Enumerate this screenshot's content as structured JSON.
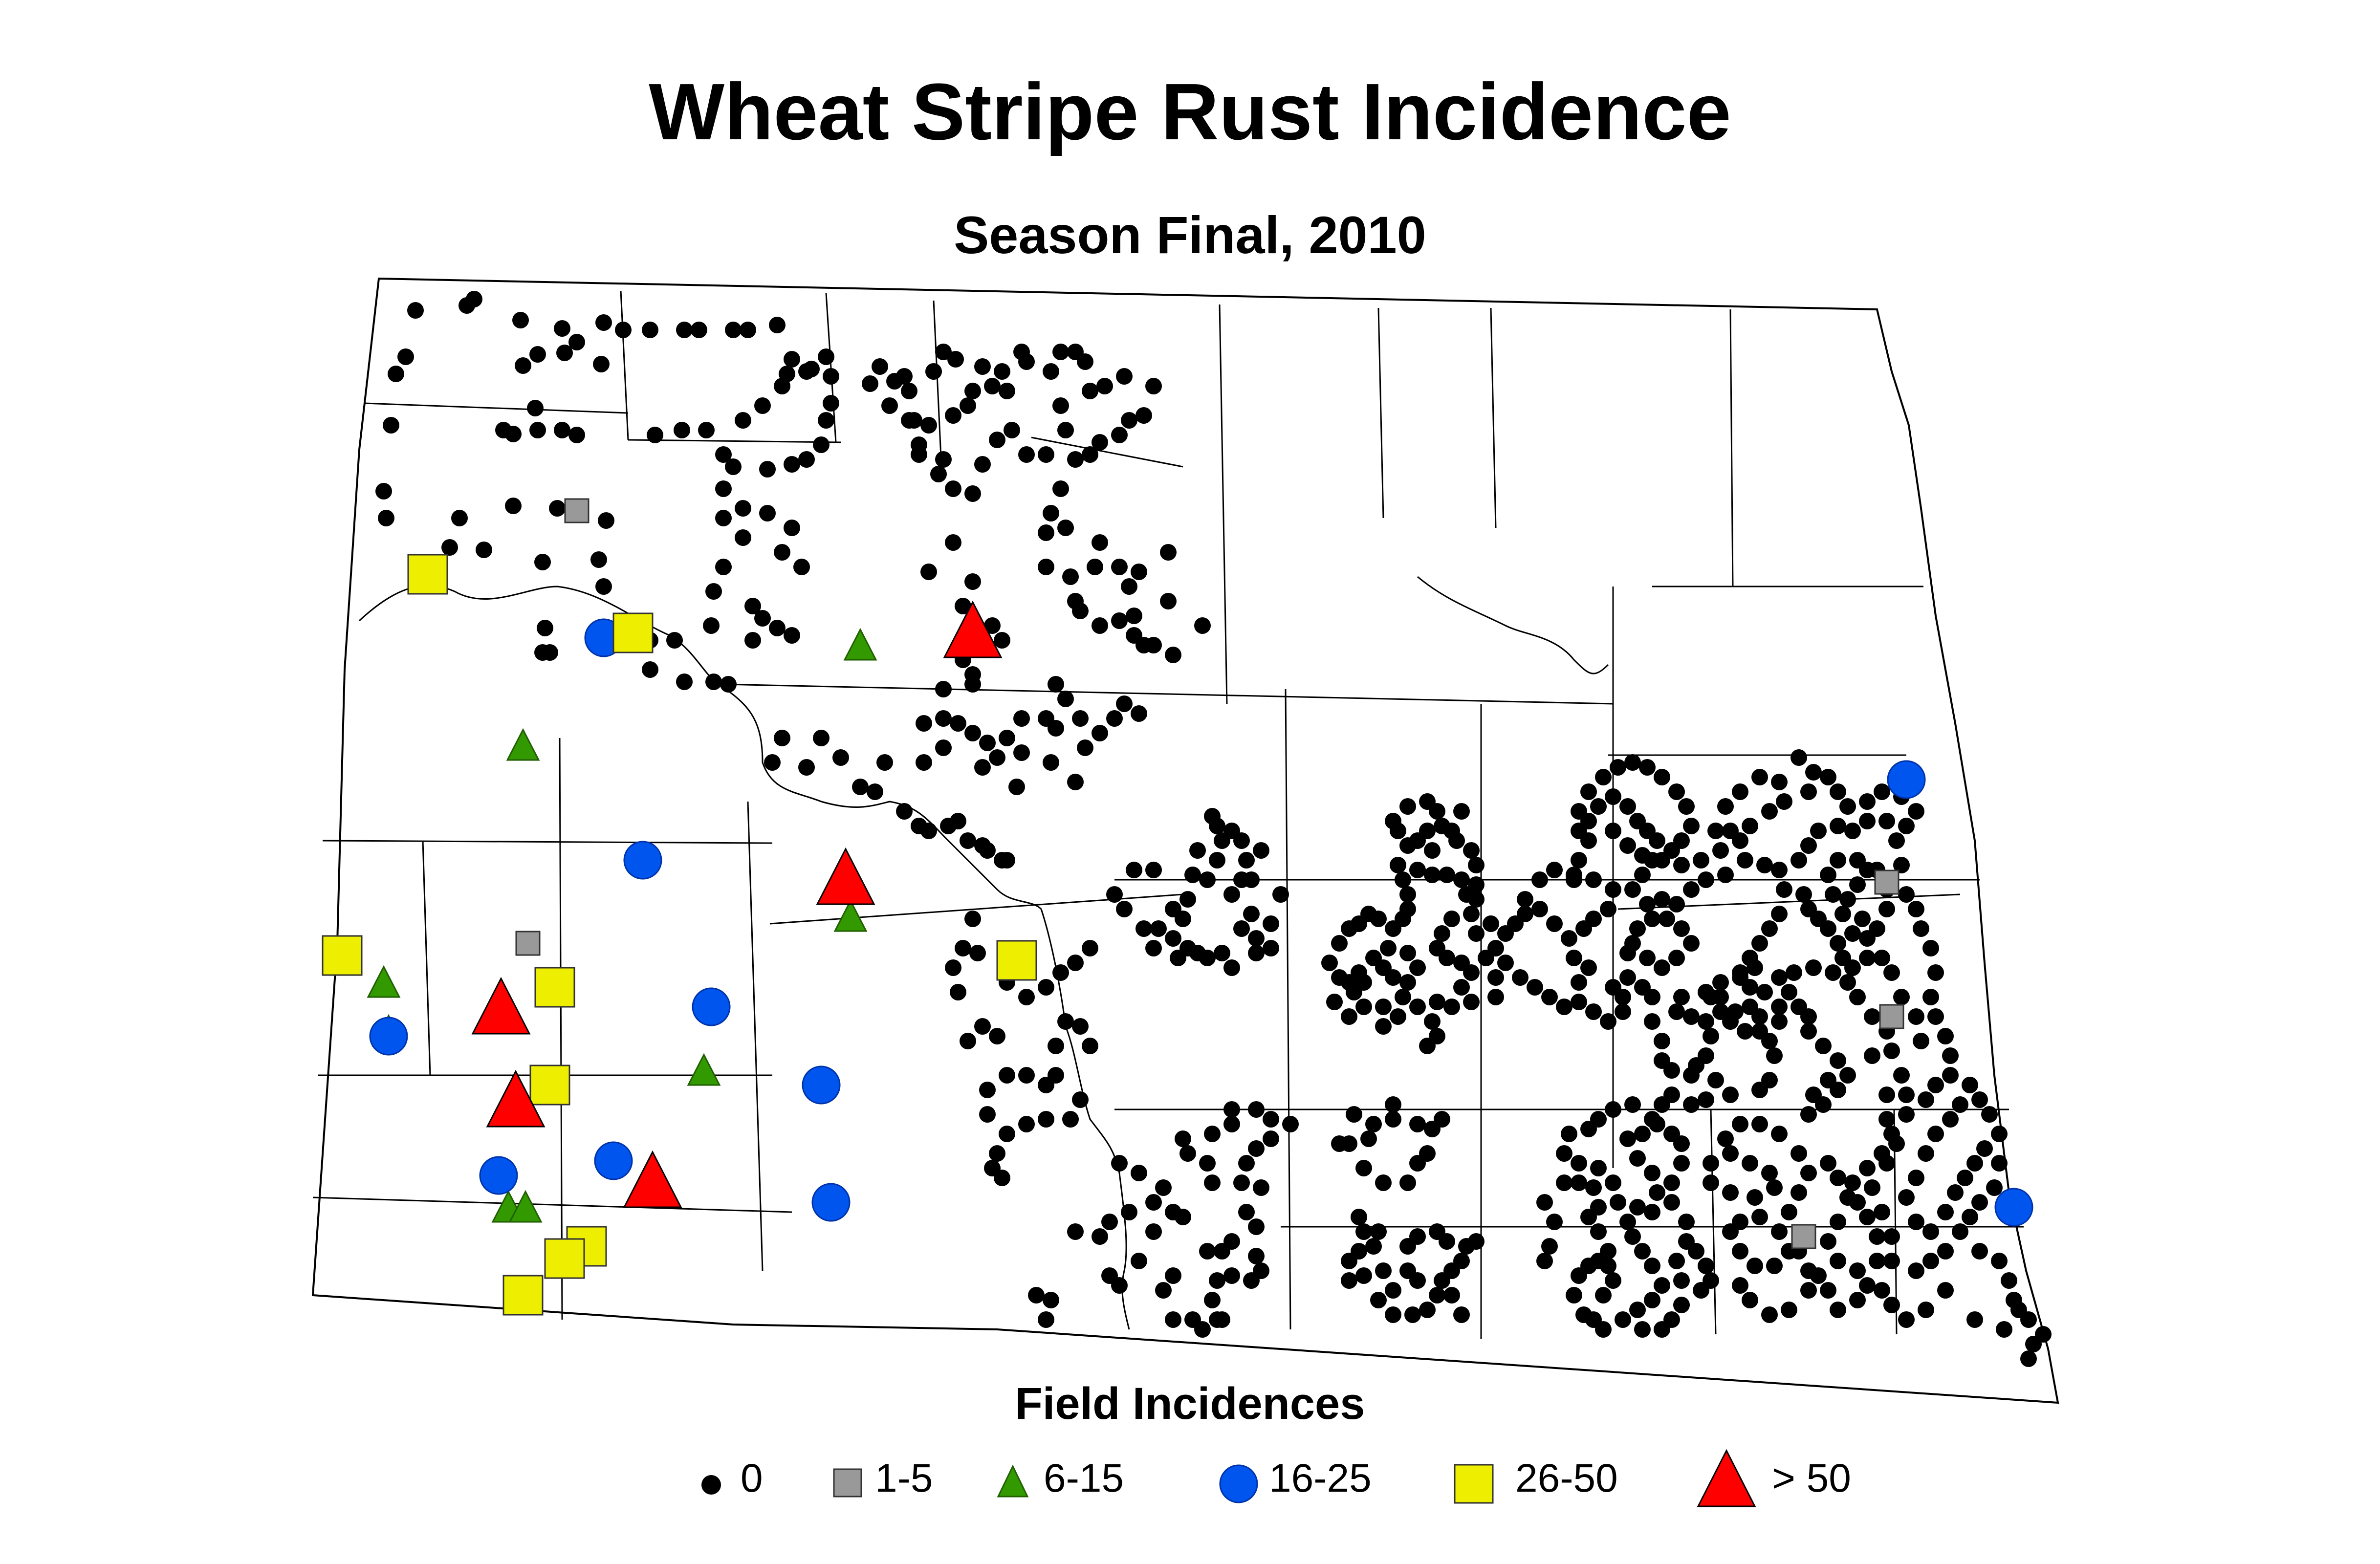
{
  "title": "Wheat Stripe Rust Incidence",
  "subtitle": "Season Final, 2010",
  "legend": {
    "title": "Field Incidences",
    "items": [
      {
        "label": "0",
        "symbol": "dot",
        "color": "#000000"
      },
      {
        "label": "1-5",
        "symbol": "square",
        "color": "#999999"
      },
      {
        "label": "6-15",
        "symbol": "triangle",
        "color": "#339900"
      },
      {
        "label": "16-25",
        "symbol": "circle",
        "color": "#0055ee"
      },
      {
        "label": "26-50",
        "symbol": "square",
        "color": "#eeee00"
      },
      {
        "label": "> 50",
        "symbol": "triangle",
        "color": "#ff0000"
      }
    ]
  },
  "colors": {
    "boundary": "#000000",
    "background": "#ffffff"
  }
}
